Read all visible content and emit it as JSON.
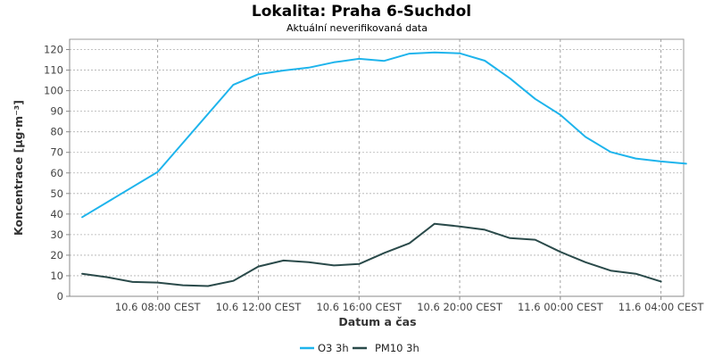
{
  "chart_data": {
    "type": "line",
    "title": "Lokalita: Praha 6-Suchdol",
    "subtitle": "Aktuální neverifikovaná data",
    "xlabel": "Datum a čas",
    "ylabel": "Koncentrace [µg·m⁻³]",
    "ylim": [
      0,
      125
    ],
    "yticks": [
      0,
      10,
      20,
      30,
      40,
      50,
      60,
      70,
      80,
      90,
      100,
      110,
      120
    ],
    "xlim_hours": [
      4.5,
      28.9
    ],
    "xticks": [
      {
        "hour": 8,
        "label": "10.6 08:00 CEST"
      },
      {
        "hour": 12,
        "label": "10.6 12:00 CEST"
      },
      {
        "hour": 16,
        "label": "10.6 16:00 CEST"
      },
      {
        "hour": 20,
        "label": "10.6 20:00 CEST"
      },
      {
        "hour": 24,
        "label": "11.6 00:00 CEST"
      },
      {
        "hour": 28,
        "label": "11.6 04:00 CEST"
      }
    ],
    "grid": true,
    "legend_position": "bottom",
    "x_hours": [
      5,
      6,
      7,
      8,
      9,
      10,
      11,
      12,
      13,
      14,
      15,
      16,
      17,
      18,
      19,
      20,
      21,
      22,
      23,
      24,
      25,
      26,
      27,
      28,
      29
    ],
    "series": [
      {
        "name": "O3 3h",
        "color": "#1eb4ec",
        "values": [
          38.5,
          null,
          null,
          60.5,
          null,
          null,
          102.8,
          108,
          109.8,
          111.2,
          113.8,
          115.5,
          114.5,
          118,
          118.6,
          118.2,
          114.6,
          106,
          96,
          88.3,
          77.5,
          70.2,
          67,
          65.6,
          64.5
        ]
      },
      {
        "name": "PM10 3h",
        "color": "#2a4a4a",
        "values": [
          11,
          9.3,
          7,
          6.7,
          5.4,
          5,
          7.5,
          14.5,
          17.4,
          16.6,
          15,
          15.7,
          21.1,
          25.8,
          35.3,
          34,
          32.4,
          28.3,
          27.5,
          21.6,
          16.6,
          12.5,
          11,
          7.2,
          null
        ]
      }
    ]
  }
}
